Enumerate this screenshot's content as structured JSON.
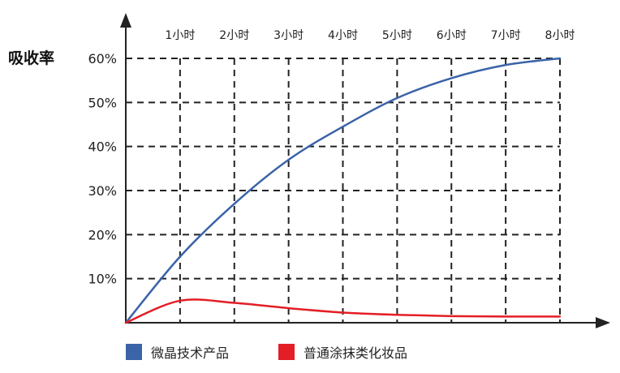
{
  "chart_data": {
    "type": "line",
    "ylabel": "吸收率",
    "xlabel": "",
    "title": "",
    "categories": [
      "1小时",
      "2小时",
      "3小时",
      "4小时",
      "5小时",
      "6小时",
      "7小时",
      "8小时"
    ],
    "x": [
      0,
      1,
      2,
      3,
      4,
      5,
      6,
      7,
      8
    ],
    "y_ticks": [
      "10%",
      "20%",
      "30%",
      "40%",
      "50%",
      "60%"
    ],
    "ylim": [
      0,
      60
    ],
    "xlim": [
      0,
      8
    ],
    "grid": true,
    "legend_position": "bottom-left",
    "series": [
      {
        "name": "微晶技术产品",
        "color": "#3A63A8",
        "values": [
          0,
          15,
          27,
          37,
          44.5,
          51,
          55.5,
          58.5,
          60
        ]
      },
      {
        "name": "普通涂抹类化妆品",
        "color": "#E41E26",
        "values": [
          0,
          5,
          4.5,
          3.3,
          2.3,
          1.8,
          1.5,
          1.4,
          1.4
        ]
      }
    ]
  }
}
